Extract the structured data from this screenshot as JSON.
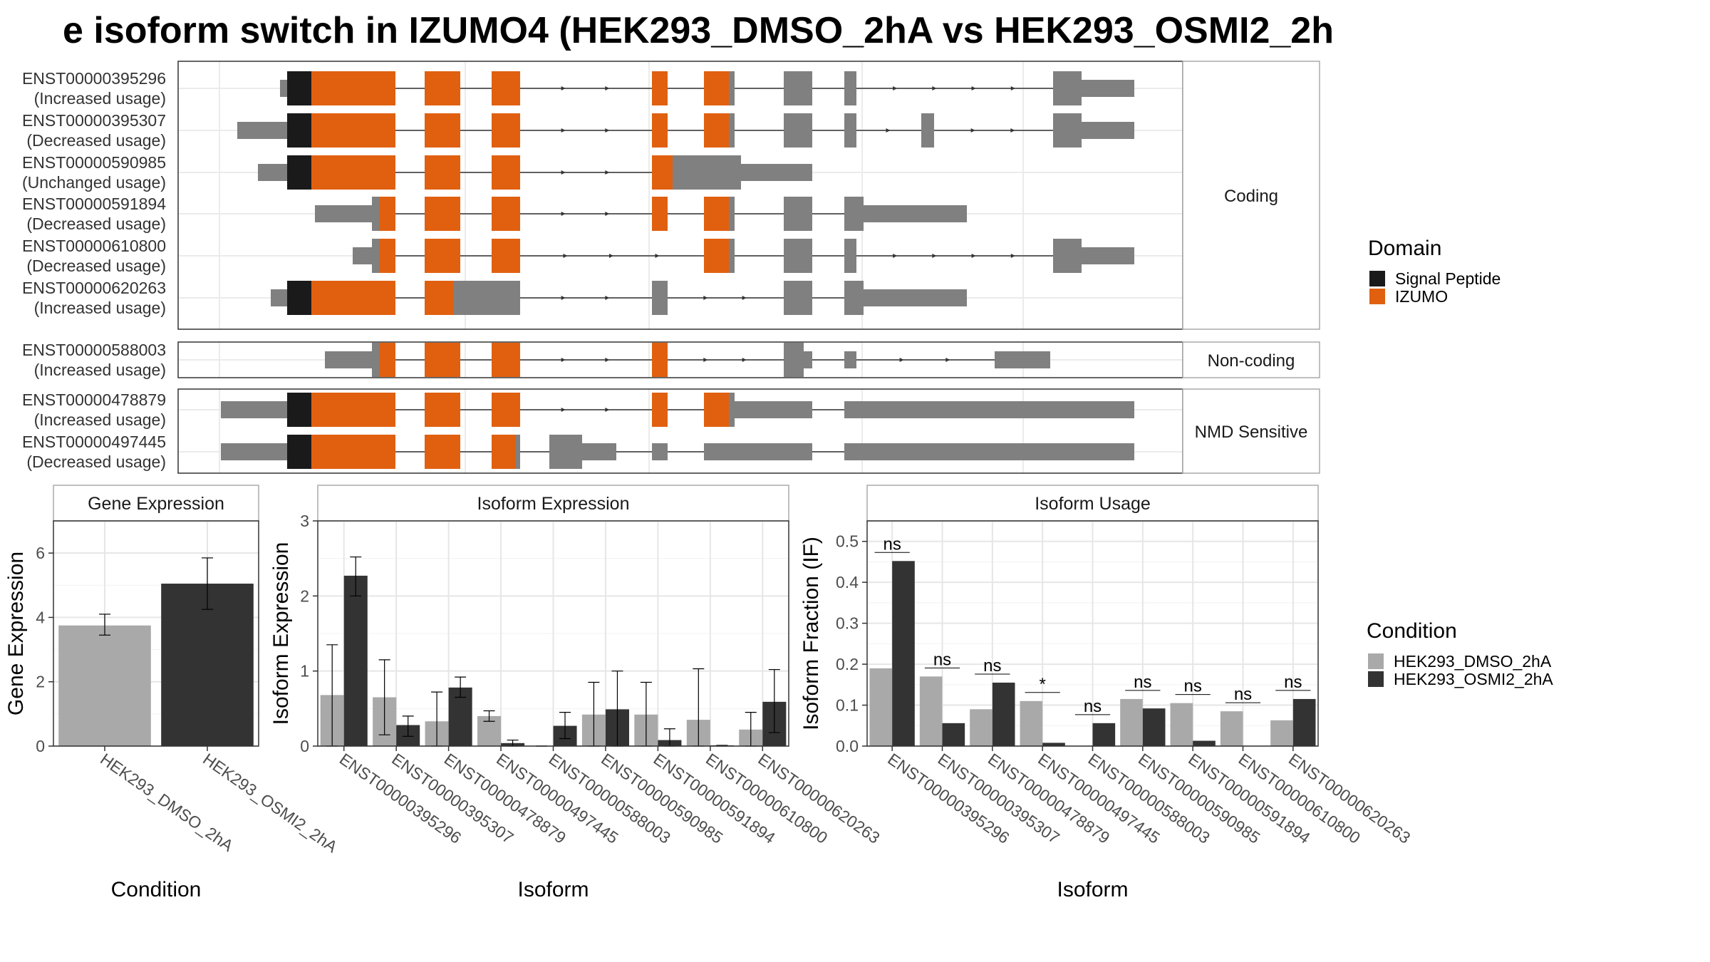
{
  "title": "e isoform switch in IZUMO4 (HEK293_DMSO_2hA vs HEK293_OSMI2_2h",
  "structure": {
    "transcripts": [
      {
        "id": "ENST00000395296",
        "usage": "(Increased usage)"
      },
      {
        "id": "ENST00000395307",
        "usage": "(Decreased usage)"
      },
      {
        "id": "ENST00000590985",
        "usage": "(Unchanged usage)"
      },
      {
        "id": "ENST00000591894",
        "usage": "(Decreased usage)"
      },
      {
        "id": "ENST00000610800",
        "usage": "(Decreased usage)"
      },
      {
        "id": "ENST00000620263",
        "usage": "(Increased usage)"
      },
      {
        "id": "ENST00000588003",
        "usage": "(Increased usage)"
      },
      {
        "id": "ENST00000478879",
        "usage": "(Increased usage)"
      },
      {
        "id": "ENST00000497445",
        "usage": "(Decreased usage)"
      }
    ],
    "strips": [
      "Coding",
      "Non-coding",
      "NMD Sensitive"
    ]
  },
  "legend_domain": {
    "title": "Domain",
    "items": [
      {
        "label": "Signal Peptide",
        "color": "#1a1a1a"
      },
      {
        "label": "IZUMO",
        "color": "#e06010"
      }
    ]
  },
  "legend_condition": {
    "title": "Condition",
    "items": [
      {
        "label": "HEK293_DMSO_2hA",
        "color": "#a9a9a9"
      },
      {
        "label": "HEK293_OSMI2_2hA",
        "color": "#333333"
      }
    ]
  },
  "chart_data": [
    {
      "type": "bar",
      "title": "Gene Expression",
      "xlabel": "Condition",
      "ylabel": "Gene Expression",
      "ylim": [
        0,
        7
      ],
      "yticks": [
        "0",
        "2",
        "4",
        "6"
      ],
      "categories": [
        "HEK293_DMSO_2hA",
        "HEK293_OSMI2_2hA"
      ],
      "values": [
        3.75,
        5.05
      ],
      "error_low": [
        3.45,
        4.25
      ],
      "error_high": [
        4.1,
        5.85
      ]
    },
    {
      "type": "bar",
      "title": "Isoform Expression",
      "xlabel": "Isoform",
      "ylabel": "Isoform Expression",
      "ylim": [
        0,
        3
      ],
      "yticks": [
        "0",
        "1",
        "2",
        "3"
      ],
      "categories": [
        "ENST00000395296",
        "ENST00000395307",
        "ENST00000478879",
        "ENST00000497445",
        "ENST00000588003",
        "ENST00000590985",
        "ENST00000591894",
        "ENST00000610800",
        "ENST00000620263"
      ],
      "series": [
        {
          "name": "HEK293_DMSO_2hA",
          "values": [
            0.68,
            0.65,
            0.33,
            0.4,
            0.0,
            0.42,
            0.42,
            0.35,
            0.22
          ],
          "error_low": [
            0.0,
            0.15,
            0.0,
            0.33,
            0.0,
            0.0,
            0.0,
            0.0,
            0.0
          ],
          "error_high": [
            1.35,
            1.15,
            0.72,
            0.47,
            0.0,
            0.85,
            0.85,
            1.03,
            0.45
          ]
        },
        {
          "name": "HEK293_OSMI2_2hA",
          "values": [
            2.27,
            0.28,
            0.78,
            0.04,
            0.27,
            0.49,
            0.08,
            0.01,
            0.59
          ],
          "error_low": [
            2.0,
            0.13,
            0.65,
            0.0,
            0.1,
            0.0,
            0.0,
            0.0,
            0.18
          ],
          "error_high": [
            2.52,
            0.4,
            0.92,
            0.08,
            0.45,
            1.0,
            0.23,
            0.01,
            1.02
          ]
        }
      ]
    },
    {
      "type": "bar",
      "title": "Isoform Usage",
      "xlabel": "Isoform",
      "ylabel": "Isoform Fraction (IF)",
      "ylim": [
        0,
        0.55
      ],
      "yticks": [
        "0.0",
        "0.1",
        "0.2",
        "0.3",
        "0.4",
        "0.5"
      ],
      "categories": [
        "ENST00000395296",
        "ENST00000395307",
        "ENST00000478879",
        "ENST00000497445",
        "ENST00000588003",
        "ENST00000590985",
        "ENST00000591894",
        "ENST00000610800",
        "ENST00000620263"
      ],
      "series": [
        {
          "name": "HEK293_DMSO_2hA",
          "values": [
            0.19,
            0.17,
            0.09,
            0.11,
            0.0,
            0.115,
            0.105,
            0.085,
            0.063
          ]
        },
        {
          "name": "HEK293_OSMI2_2hA",
          "values": [
            0.452,
            0.056,
            0.155,
            0.008,
            0.056,
            0.092,
            0.013,
            0.0,
            0.115
          ]
        }
      ],
      "significance": [
        "ns",
        "ns",
        "ns",
        "*",
        "ns",
        "ns",
        "ns",
        "ns",
        "ns"
      ]
    }
  ]
}
